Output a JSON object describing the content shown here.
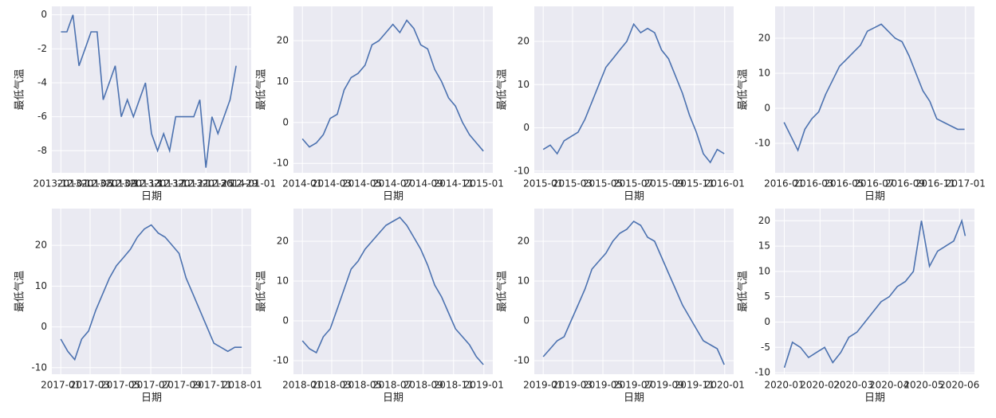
{
  "chart_data": [
    {
      "type": "line",
      "xlabel": "日期",
      "ylabel": "最低气温",
      "color": "#4c72b0",
      "grid": true,
      "x": [
        0,
        1,
        2,
        3,
        4,
        5,
        6,
        7,
        8,
        9,
        10,
        11,
        12,
        13,
        14,
        15,
        16,
        17,
        18,
        19,
        20,
        21,
        22,
        23,
        24,
        25,
        26,
        27,
        28,
        29
      ],
      "values": [
        -1,
        -1,
        0,
        -3,
        -2,
        -1,
        -1,
        -5,
        -4,
        -3,
        -6,
        -5,
        -6,
        -5,
        -4,
        -7,
        -8,
        -7,
        -8,
        -6,
        -6,
        -6,
        -6,
        -5,
        -9,
        -6,
        -7,
        -6,
        -5,
        -3
      ],
      "xlim": [
        -1.5,
        31.5
      ],
      "ylim": [
        -9.3,
        0.5
      ],
      "yticks": [
        0,
        -2,
        -4,
        -6,
        -8
      ],
      "xticks": [
        {
          "value": 0,
          "label": "2013-12-01"
        },
        {
          "value": 4,
          "label": "2013-12-05"
        },
        {
          "value": 8,
          "label": "2013-12-09"
        },
        {
          "value": 12,
          "label": "2013-12-13"
        },
        {
          "value": 16,
          "label": "2013-12-17"
        },
        {
          "value": 20,
          "label": "2013-12-21"
        },
        {
          "value": 24,
          "label": "2013-12-25"
        },
        {
          "value": 28,
          "label": "2013-12-29"
        },
        {
          "value": 31,
          "label": "2014-01-01"
        }
      ]
    },
    {
      "type": "line",
      "xlabel": "日期",
      "ylabel": "最低气温",
      "color": "#4c72b0",
      "grid": true,
      "x": [
        0,
        14,
        28,
        42,
        56,
        70,
        84,
        98,
        112,
        126,
        140,
        154,
        168,
        182,
        196,
        210,
        224,
        238,
        252,
        266,
        280,
        294,
        308,
        322,
        336,
        350,
        364
      ],
      "values": [
        -4,
        -6,
        -5,
        -3,
        1,
        2,
        8,
        11,
        12,
        14,
        19,
        20,
        22,
        24,
        22,
        25,
        23,
        19,
        18,
        13,
        10,
        6,
        4,
        0,
        -3,
        -5,
        -7
      ],
      "xlim": [
        -18,
        383
      ],
      "ylim": [
        -12.3,
        28.4
      ],
      "yticks": [
        -10,
        0,
        10,
        20
      ],
      "xticks": [
        {
          "value": 0,
          "label": "2014-01"
        },
        {
          "value": 59,
          "label": "2014-03"
        },
        {
          "value": 120,
          "label": "2014-05"
        },
        {
          "value": 181,
          "label": "2014-07"
        },
        {
          "value": 243,
          "label": "2014-09"
        },
        {
          "value": 304,
          "label": "2014-11"
        },
        {
          "value": 365,
          "label": "2015-01"
        }
      ]
    },
    {
      "type": "line",
      "xlabel": "日期",
      "ylabel": "最低气温",
      "color": "#4c72b0",
      "grid": true,
      "x": [
        0,
        14,
        28,
        42,
        56,
        70,
        84,
        98,
        112,
        126,
        140,
        154,
        168,
        182,
        196,
        210,
        224,
        238,
        252,
        266,
        280,
        294,
        308,
        322,
        336,
        350,
        364
      ],
      "values": [
        -5,
        -4,
        -6,
        -3,
        -2,
        -1,
        2,
        6,
        10,
        14,
        16,
        18,
        20,
        24,
        22,
        23,
        22,
        18,
        16,
        12,
        8,
        3,
        -1,
        -6,
        -8,
        -5,
        -6
      ],
      "xlim": [
        -18,
        383
      ],
      "ylim": [
        -10.4,
        28.1
      ],
      "yticks": [
        -10,
        0,
        10,
        20
      ],
      "xticks": [
        {
          "value": 0,
          "label": "2015-01"
        },
        {
          "value": 59,
          "label": "2015-03"
        },
        {
          "value": 120,
          "label": "2015-05"
        },
        {
          "value": 181,
          "label": "2015-07"
        },
        {
          "value": 243,
          "label": "2015-09"
        },
        {
          "value": 304,
          "label": "2015-11"
        },
        {
          "value": 365,
          "label": "2016-01"
        }
      ]
    },
    {
      "type": "line",
      "xlabel": "日期",
      "ylabel": "最低气温",
      "color": "#4c72b0",
      "grid": true,
      "x": [
        0,
        14,
        28,
        42,
        56,
        70,
        84,
        98,
        112,
        126,
        140,
        154,
        168,
        182,
        196,
        210,
        224,
        238,
        252,
        266,
        280,
        294,
        308,
        322,
        336,
        350,
        364
      ],
      "values": [
        -4,
        -8,
        -12,
        -6,
        -3,
        -1,
        4,
        8,
        12,
        14,
        16,
        18,
        22,
        23,
        24,
        22,
        20,
        19,
        15,
        10,
        5,
        2,
        -3,
        -4,
        -5,
        -6,
        -6
      ],
      "xlim": [
        -18,
        384
      ],
      "ylim": [
        -18.4,
        29.1
      ],
      "yticks": [
        -10,
        0,
        10,
        20
      ],
      "xticks": [
        {
          "value": 0,
          "label": "2016-01"
        },
        {
          "value": 60,
          "label": "2016-03"
        },
        {
          "value": 121,
          "label": "2016-05"
        },
        {
          "value": 182,
          "label": "2016-07"
        },
        {
          "value": 244,
          "label": "2016-09"
        },
        {
          "value": 305,
          "label": "2016-11"
        },
        {
          "value": 366,
          "label": "2017-01"
        }
      ]
    },
    {
      "type": "line",
      "xlabel": "日期",
      "ylabel": "最低气温",
      "color": "#4c72b0",
      "grid": true,
      "x": [
        0,
        14,
        28,
        42,
        56,
        70,
        84,
        98,
        112,
        126,
        140,
        154,
        168,
        182,
        196,
        210,
        224,
        238,
        252,
        266,
        280,
        294,
        308,
        322,
        336,
        350,
        364
      ],
      "values": [
        -3,
        -6,
        -8,
        -3,
        -1,
        4,
        8,
        12,
        15,
        17,
        19,
        22,
        24,
        25,
        23,
        22,
        20,
        18,
        12,
        8,
        4,
        0,
        -4,
        -5,
        -6,
        -5,
        -5
      ],
      "xlim": [
        -18,
        383
      ],
      "ylim": [
        -11.6,
        29
      ],
      "yticks": [
        -10,
        0,
        10,
        20
      ],
      "xticks": [
        {
          "value": 0,
          "label": "2017-01"
        },
        {
          "value": 59,
          "label": "2017-03"
        },
        {
          "value": 120,
          "label": "2017-05"
        },
        {
          "value": 181,
          "label": "2017-07"
        },
        {
          "value": 243,
          "label": "2017-09"
        },
        {
          "value": 304,
          "label": "2017-11"
        },
        {
          "value": 365,
          "label": "2018-01"
        }
      ]
    },
    {
      "type": "line",
      "xlabel": "日期",
      "ylabel": "最低气温",
      "color": "#4c72b0",
      "grid": true,
      "x": [
        0,
        14,
        28,
        42,
        56,
        70,
        84,
        98,
        112,
        126,
        140,
        154,
        168,
        182,
        196,
        210,
        224,
        238,
        252,
        266,
        280,
        294,
        308,
        322,
        336,
        350,
        364
      ],
      "values": [
        -5,
        -7,
        -8,
        -4,
        -2,
        3,
        8,
        13,
        15,
        18,
        20,
        22,
        24,
        25,
        26,
        24,
        21,
        18,
        14,
        9,
        6,
        2,
        -2,
        -4,
        -6,
        -9,
        -11
      ],
      "xlim": [
        -18,
        383
      ],
      "ylim": [
        -13.4,
        28.2
      ],
      "yticks": [
        -10,
        0,
        10,
        20
      ],
      "xticks": [
        {
          "value": 0,
          "label": "2018-01"
        },
        {
          "value": 59,
          "label": "2018-03"
        },
        {
          "value": 120,
          "label": "2018-05"
        },
        {
          "value": 181,
          "label": "2018-07"
        },
        {
          "value": 243,
          "label": "2018-09"
        },
        {
          "value": 304,
          "label": "2018-11"
        },
        {
          "value": 365,
          "label": "2019-01"
        }
      ]
    },
    {
      "type": "line",
      "xlabel": "日期",
      "ylabel": "最低气温",
      "color": "#4c72b0",
      "grid": true,
      "x": [
        0,
        14,
        28,
        42,
        56,
        70,
        84,
        98,
        112,
        126,
        140,
        154,
        168,
        182,
        196,
        210,
        224,
        238,
        252,
        266,
        280,
        294,
        308,
        322,
        336,
        350,
        364
      ],
      "values": [
        -9,
        -7,
        -5,
        -4,
        0,
        4,
        8,
        13,
        15,
        17,
        20,
        22,
        23,
        25,
        24,
        21,
        20,
        16,
        12,
        8,
        4,
        1,
        -2,
        -5,
        -6,
        -7,
        -11
      ],
      "xlim": [
        -18,
        383
      ],
      "ylim": [
        -13.4,
        28.2
      ],
      "yticks": [
        -10,
        0,
        10,
        20
      ],
      "xticks": [
        {
          "value": 0,
          "label": "2019-01"
        },
        {
          "value": 59,
          "label": "2019-03"
        },
        {
          "value": 120,
          "label": "2019-05"
        },
        {
          "value": 181,
          "label": "2019-07"
        },
        {
          "value": 243,
          "label": "2019-09"
        },
        {
          "value": 304,
          "label": "2019-11"
        },
        {
          "value": 365,
          "label": "2020-01"
        }
      ]
    },
    {
      "type": "line",
      "xlabel": "日期",
      "ylabel": "最低气温",
      "color": "#4c72b0",
      "grid": true,
      "x": [
        0,
        7,
        14,
        21,
        28,
        35,
        42,
        49,
        56,
        63,
        70,
        77,
        84,
        91,
        98,
        105,
        112,
        119,
        126,
        133,
        140,
        147,
        154,
        157
      ],
      "values": [
        -9,
        -4,
        -5,
        -7,
        -6,
        -5,
        -8,
        -6,
        -3,
        -2,
        0,
        2,
        4,
        5,
        7,
        8,
        10,
        20,
        11,
        14,
        15,
        16,
        20,
        17
      ],
      "xlim": [
        -8,
        165
      ],
      "ylim": [
        -10.3,
        22.4
      ],
      "yticks": [
        -10,
        -5,
        0,
        5,
        10,
        15,
        20
      ],
      "xticks": [
        {
          "value": 0,
          "label": "2020-01"
        },
        {
          "value": 31,
          "label": "2020-02"
        },
        {
          "value": 60,
          "label": "2020-03"
        },
        {
          "value": 91,
          "label": "2020-04"
        },
        {
          "value": 121,
          "label": "2020-05"
        },
        {
          "value": 152,
          "label": "2020-06"
        }
      ]
    }
  ]
}
